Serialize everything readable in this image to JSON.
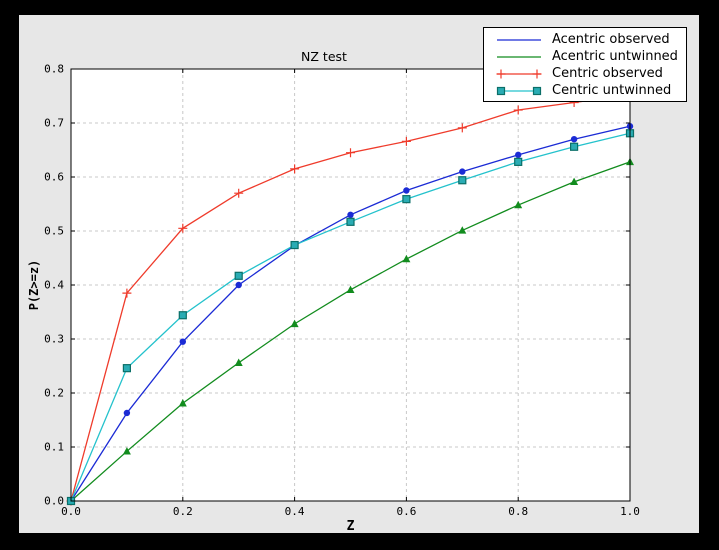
{
  "window": {
    "outer_background": "#000000",
    "figure_background": "#e7e7e7",
    "plot_background": "#ffffff",
    "grid_color": "#c8c8c8",
    "frame_color": "#000000"
  },
  "chart_data": {
    "type": "line",
    "title": "NZ test",
    "xlabel": "Z",
    "ylabel": "P(Z>=z)",
    "xlim": [
      0.0,
      1.0
    ],
    "ylim": [
      0.0,
      0.8
    ],
    "xticks": [
      0.0,
      0.2,
      0.4,
      0.6,
      0.8,
      1.0
    ],
    "xtick_labels": [
      "0.0",
      "0.2",
      "0.4",
      "0.6",
      "0.8",
      "1.0"
    ],
    "yticks": [
      0.0,
      0.1,
      0.2,
      0.3,
      0.4,
      0.5,
      0.6,
      0.7,
      0.8
    ],
    "ytick_labels": [
      "0.0",
      "0.1",
      "0.2",
      "0.3",
      "0.4",
      "0.5",
      "0.6",
      "0.7",
      "0.8"
    ],
    "grid": true,
    "grid_style": "dashed",
    "legend_position": "upper right",
    "x": [
      0.0,
      0.1,
      0.2,
      0.3,
      0.4,
      0.5,
      0.6,
      0.7,
      0.8,
      0.9,
      1.0
    ],
    "series": [
      {
        "name": "Acentric observed",
        "color": "#1b2bd5",
        "marker": "circle",
        "values": [
          0.0,
          0.163,
          0.295,
          0.4,
          0.473,
          0.53,
          0.575,
          0.61,
          0.641,
          0.67,
          0.694
        ]
      },
      {
        "name": "Acentric untwinned",
        "color": "#128c1e",
        "marker": "triangle",
        "values": [
          0.0,
          0.092,
          0.181,
          0.256,
          0.328,
          0.391,
          0.448,
          0.501,
          0.548,
          0.591,
          0.628
        ]
      },
      {
        "name": "Centric observed",
        "color": "#ef3b2b",
        "marker": "plus",
        "values": [
          0.0,
          0.385,
          0.505,
          0.57,
          0.615,
          0.645,
          0.666,
          0.691,
          0.724,
          0.738,
          0.752
        ]
      },
      {
        "name": "Centric untwinned",
        "color": "#24c2cc",
        "marker": "square",
        "marker_fill": "#2aacb4",
        "marker_edge": "#0b6f68",
        "values": [
          0.0,
          0.246,
          0.344,
          0.417,
          0.474,
          0.517,
          0.559,
          0.594,
          0.628,
          0.656,
          0.681
        ]
      }
    ]
  }
}
